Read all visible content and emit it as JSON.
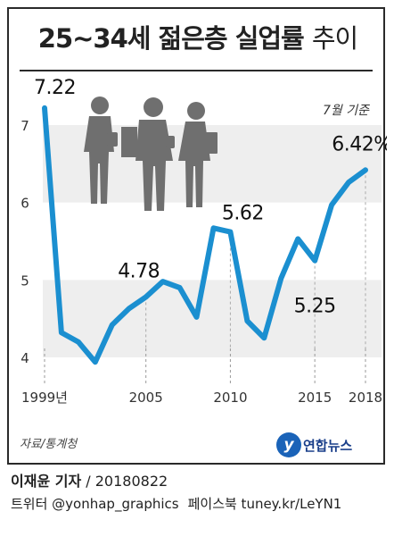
{
  "title": {
    "bold": "25~34세 젊은층 실업률",
    "light": "추이"
  },
  "note": "7월 기준",
  "source": "자료/통계청",
  "logo_text": "연합뉴스",
  "credit": {
    "author": "이재윤 기자",
    "date": "/ 20180822"
  },
  "social": {
    "twitter": "트위터 @yonhap_graphics",
    "facebook": "페이스북 tuney.kr/LeYN1"
  },
  "colors": {
    "line": "#1b8fd0",
    "band": "#eeeeee",
    "silhouette": "#6f6f6f"
  },
  "chart_data": {
    "type": "line",
    "title": "25~34세 젊은층 실업률 추이",
    "ylim": [
      4,
      7
    ],
    "xlim": [
      1999,
      2018
    ],
    "y_ticks": [
      "4",
      "5",
      "6",
      "7"
    ],
    "x_ticks": [
      {
        "x": 1999,
        "label": "1999년"
      },
      {
        "x": 2005,
        "label": "2005"
      },
      {
        "x": 2010,
        "label": "2010"
      },
      {
        "x": 2015,
        "label": "2015"
      },
      {
        "x": 2018,
        "label": "2018"
      }
    ],
    "points": [
      {
        "x": 1999,
        "y": 7.22
      },
      {
        "x": 2000,
        "y": 4.32
      },
      {
        "x": 2001,
        "y": 4.2
      },
      {
        "x": 2002,
        "y": 3.94
      },
      {
        "x": 2003,
        "y": 4.42
      },
      {
        "x": 2004,
        "y": 4.63
      },
      {
        "x": 2005,
        "y": 4.78
      },
      {
        "x": 2006,
        "y": 4.98
      },
      {
        "x": 2007,
        "y": 4.9
      },
      {
        "x": 2008,
        "y": 4.52
      },
      {
        "x": 2009,
        "y": 5.67
      },
      {
        "x": 2010,
        "y": 5.62
      },
      {
        "x": 2011,
        "y": 4.47
      },
      {
        "x": 2012,
        "y": 4.25
      },
      {
        "x": 2013,
        "y": 5.02
      },
      {
        "x": 2014,
        "y": 5.53
      },
      {
        "x": 2015,
        "y": 5.25
      },
      {
        "x": 2016,
        "y": 5.97
      },
      {
        "x": 2017,
        "y": 6.26
      },
      {
        "x": 2018,
        "y": 6.42
      }
    ],
    "data_labels": [
      {
        "x": 1999,
        "text": "7.22"
      },
      {
        "x": 2005,
        "text": "4.78"
      },
      {
        "x": 2010,
        "text": "5.62"
      },
      {
        "x": 2015,
        "text": "5.25"
      },
      {
        "x": 2018,
        "text": "6.42%"
      }
    ]
  }
}
